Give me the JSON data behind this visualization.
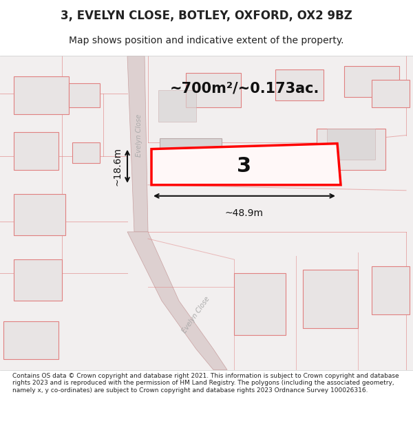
{
  "title": "3, EVELYN CLOSE, BOTLEY, OXFORD, OX2 9BZ",
  "subtitle": "Map shows position and indicative extent of the property.",
  "footer": "Contains OS data © Crown copyright and database right 2021. This information is subject to Crown copyright and database rights 2023 and is reproduced with the permission of HM Land Registry. The polygons (including the associated geometry, namely x, y co-ordinates) are subject to Crown copyright and database rights 2023 Ordnance Survey 100026316.",
  "area_text": "~700m²/~0.173ac.",
  "width_label": "~48.9m",
  "height_label": "~18.6m",
  "house_number": "3",
  "map_bg": "#f2efef",
  "road_fill": "#ddd0d0",
  "road_edge": "#c8a0a0",
  "building_fill": "#e8e4e4",
  "building_edge": "#e08080",
  "sub_building_fill": "#d8d4d4",
  "sub_building_edge": "#c8a8a8",
  "highlight_color": "#ff0000",
  "highlight_fill": "#fff8f8",
  "line_color": "#e08080",
  "road_label_color": "#aaaaaa",
  "title_color": "#222222",
  "footer_color": "#222222",
  "measure_color": "#111111"
}
